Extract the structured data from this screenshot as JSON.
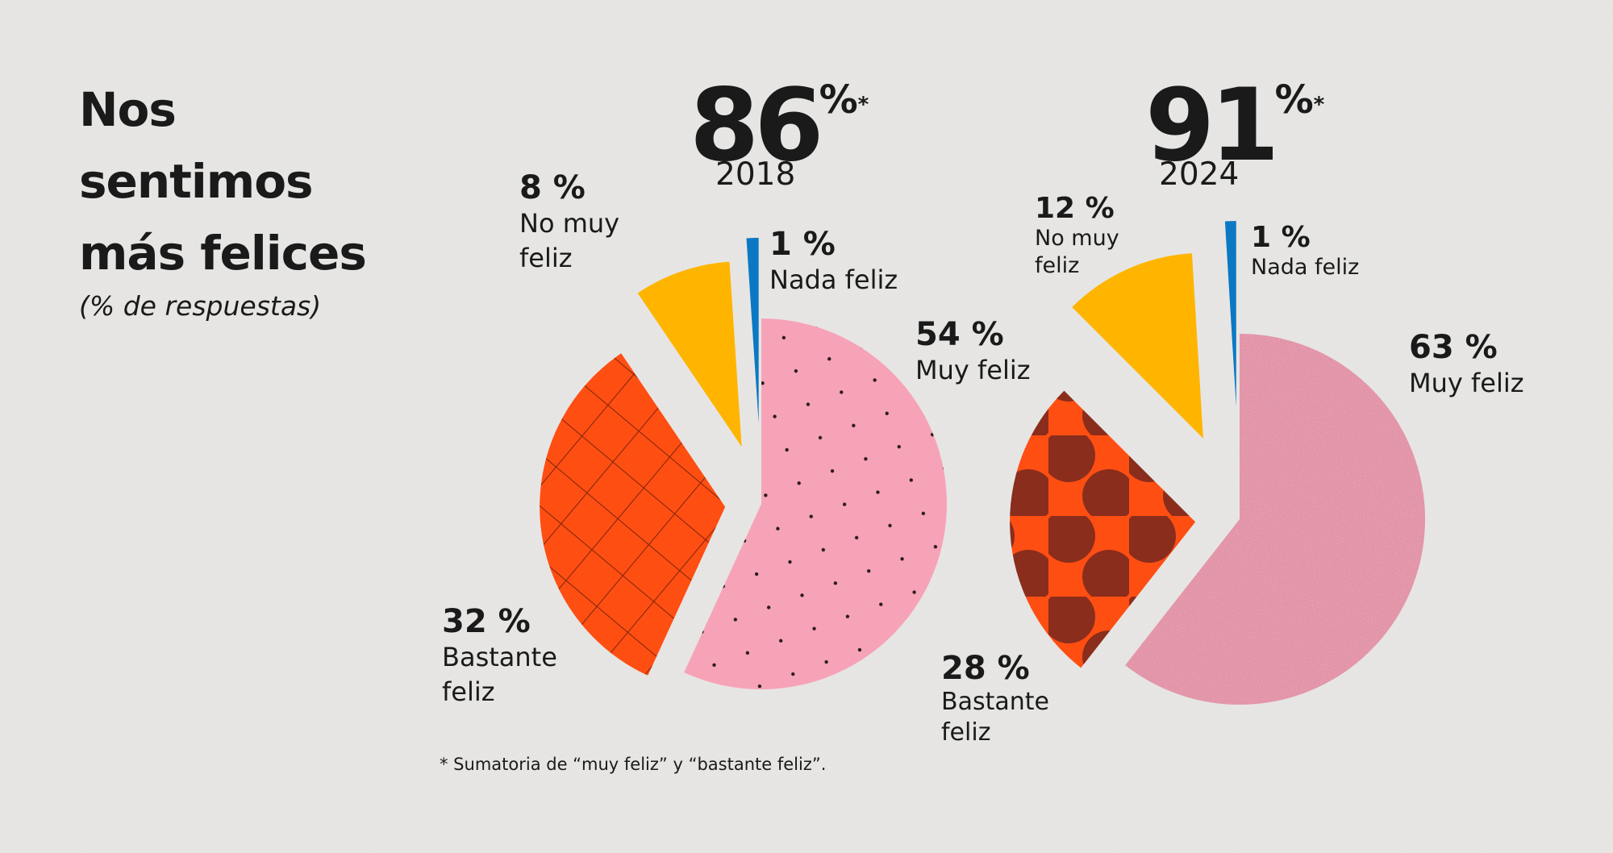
{
  "title_lines": [
    "Nos",
    "sentimos",
    "más felices"
  ],
  "subtitle": "(% de respuestas)",
  "footnote": "* Sumatoria de “muy feliz” y “bastante feliz”.",
  "colors": {
    "muy_feliz": "#f7a3b7",
    "bastante_feliz": "#ff4e12",
    "no_muy_feliz": "#ffb500",
    "nada_feliz": "#0b78c4",
    "background": "#e8e7e5"
  },
  "chart_data": [
    {
      "type": "pie",
      "year": "2018",
      "total": {
        "value": "86",
        "unit": "%",
        "mark": "*"
      },
      "slices": [
        {
          "pct_label": "54 %",
          "label_lines": [
            "Muy feliz"
          ],
          "value": 54,
          "pattern": "dots"
        },
        {
          "pct_label": "32 %",
          "label_lines": [
            "Bastante",
            "feliz"
          ],
          "value": 32,
          "pattern": "grid"
        },
        {
          "pct_label": "8 %",
          "label_lines": [
            "No muy",
            "feliz"
          ],
          "value": 8,
          "pattern": "solid"
        },
        {
          "pct_label": "1 %",
          "label_lines": [
            "Nada feliz"
          ],
          "value": 1,
          "pattern": "solid"
        }
      ]
    },
    {
      "type": "pie",
      "year": "2024",
      "total": {
        "value": "91",
        "unit": "%",
        "mark": "*"
      },
      "slices": [
        {
          "pct_label": "63 %",
          "label_lines": [
            "Muy feliz"
          ],
          "value": 63,
          "pattern": "texture"
        },
        {
          "pct_label": "28 %",
          "label_lines": [
            "Bastante",
            "feliz"
          ],
          "value": 28,
          "pattern": "polka"
        },
        {
          "pct_label": "12 %",
          "label_lines": [
            "No muy",
            "feliz"
          ],
          "value": 12,
          "pattern": "solid"
        },
        {
          "pct_label": "1 %",
          "label_lines": [
            "Nada feliz"
          ],
          "value": 1,
          "pattern": "solid"
        }
      ]
    }
  ]
}
